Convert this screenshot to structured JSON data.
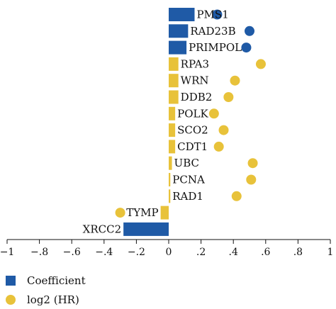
{
  "chart_data": {
    "type": "bar",
    "orientation": "horizontal",
    "title": "",
    "xlabel": "",
    "ylabel": "",
    "xlim": [
      -1,
      1
    ],
    "x_ticks": [
      -1,
      -0.8,
      -0.6,
      -0.4,
      -0.2,
      0,
      0.2,
      0.4,
      0.6,
      0.8,
      1
    ],
    "x_tick_labels": [
      "−1",
      "−.8",
      "−.6",
      "−.4",
      "−.2",
      "0",
      ".2",
      ".4",
      ".6",
      ".8",
      "1"
    ],
    "grid": false,
    "legend_position": "bottom-left",
    "categories": [
      "PMS1",
      "RAD23B",
      "PRIMPOL",
      "RPA3",
      "WRN",
      "DDB2",
      "POLK",
      "SCO2",
      "CDT1",
      "UBC",
      "PCNA",
      "RAD1",
      "TYMP",
      "XRCC2"
    ],
    "series": [
      {
        "name": "Coefficient",
        "kind": "bar",
        "values": [
          0.16,
          0.12,
          0.11,
          0.06,
          0.06,
          0.06,
          0.04,
          0.04,
          0.04,
          0.02,
          0.01,
          0.01,
          -0.05,
          -0.28
        ],
        "colors": [
          "#1f5aa6",
          "#1f5aa6",
          "#1f5aa6",
          "#e8c23a",
          "#e8c23a",
          "#e8c23a",
          "#e8c23a",
          "#e8c23a",
          "#e8c23a",
          "#e8c23a",
          "#e8c23a",
          "#e8c23a",
          "#e8c23a",
          "#1f5aa6"
        ]
      },
      {
        "name": "log2 (HR)",
        "kind": "dot",
        "values": [
          0.3,
          0.5,
          0.48,
          0.57,
          0.41,
          0.37,
          0.28,
          0.34,
          0.31,
          0.52,
          0.51,
          0.42,
          -0.3,
          null
        ],
        "colors": [
          "#1f5aa6",
          "#1f5aa6",
          "#1f5aa6",
          "#e8c23a",
          "#e8c23a",
          "#e8c23a",
          "#e8c23a",
          "#e8c23a",
          "#e8c23a",
          "#e8c23a",
          "#e8c23a",
          "#e8c23a",
          "#e8c23a",
          "#1f5aa6"
        ]
      }
    ],
    "legend": [
      {
        "label": "Coefficient",
        "marker": "square",
        "color": "#1f5aa6"
      },
      {
        "label": "log2 (HR)",
        "marker": "circle",
        "color": "#e8c23a"
      }
    ]
  }
}
